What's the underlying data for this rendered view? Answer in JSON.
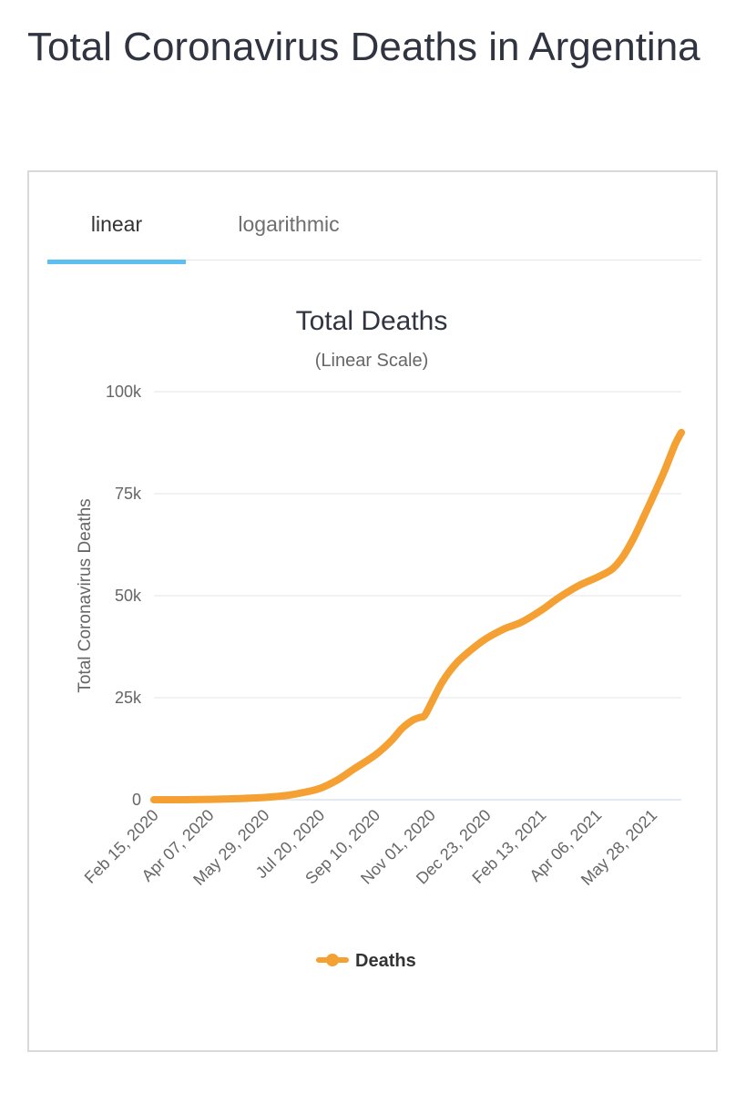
{
  "page": {
    "title": "Total Coronavirus Deaths in Argentina"
  },
  "tabs": [
    {
      "label": "linear",
      "active": true
    },
    {
      "label": "logarithmic",
      "active": false
    }
  ],
  "colors": {
    "series": "#f4a032",
    "tab_underline": "#5bc0f0",
    "gridline": "#e6e6e6"
  },
  "chart_data": {
    "type": "line",
    "title": "Total Deaths",
    "subtitle": "(Linear Scale)",
    "ylabel": "Total Coronavirus Deaths",
    "xlabel": "",
    "ylim": [
      0,
      100000
    ],
    "y_ticks": [
      {
        "value": 0,
        "label": "0"
      },
      {
        "value": 25000,
        "label": "25k"
      },
      {
        "value": 50000,
        "label": "50k"
      },
      {
        "value": 75000,
        "label": "75k"
      },
      {
        "value": 100000,
        "label": "100k"
      }
    ],
    "x_ticks": [
      "Feb 15, 2020",
      "Apr 07, 2020",
      "May 29, 2020",
      "Jul 20, 2020",
      "Sep 10, 2020",
      "Nov 01, 2020",
      "Dec 23, 2020",
      "Feb 13, 2021",
      "Apr 06, 2021",
      "May 28, 2021"
    ],
    "xlim": [
      "2020-02-15",
      "2021-06-24"
    ],
    "grid": true,
    "legend_position": "bottom",
    "series": [
      {
        "name": "Deaths",
        "points": [
          [
            "2020-02-15",
            0
          ],
          [
            "2020-03-15",
            0
          ],
          [
            "2020-04-07",
            100
          ],
          [
            "2020-05-01",
            250
          ],
          [
            "2020-05-29",
            550
          ],
          [
            "2020-06-20",
            1100
          ],
          [
            "2020-07-05",
            1800
          ],
          [
            "2020-07-20",
            2800
          ],
          [
            "2020-08-05",
            4800
          ],
          [
            "2020-08-20",
            7400
          ],
          [
            "2020-09-10",
            11000
          ],
          [
            "2020-09-25",
            14500
          ],
          [
            "2020-10-05",
            17500
          ],
          [
            "2020-10-15",
            19500
          ],
          [
            "2020-10-22",
            20200
          ],
          [
            "2020-10-26",
            20600
          ],
          [
            "2020-11-01",
            23500
          ],
          [
            "2020-11-12",
            29000
          ],
          [
            "2020-11-25",
            33500
          ],
          [
            "2020-12-10",
            37000
          ],
          [
            "2020-12-23",
            39500
          ],
          [
            "2021-01-10",
            42000
          ],
          [
            "2021-01-25",
            43500
          ],
          [
            "2021-02-13",
            46500
          ],
          [
            "2021-03-01",
            49500
          ],
          [
            "2021-03-20",
            52500
          ],
          [
            "2021-04-06",
            54500
          ],
          [
            "2021-04-20",
            56500
          ],
          [
            "2021-04-30",
            59500
          ],
          [
            "2021-05-10",
            64000
          ],
          [
            "2021-05-20",
            69500
          ],
          [
            "2021-05-28",
            74000
          ],
          [
            "2021-06-08",
            80500
          ],
          [
            "2021-06-18",
            87000
          ],
          [
            "2021-06-24",
            90000
          ]
        ]
      }
    ]
  }
}
